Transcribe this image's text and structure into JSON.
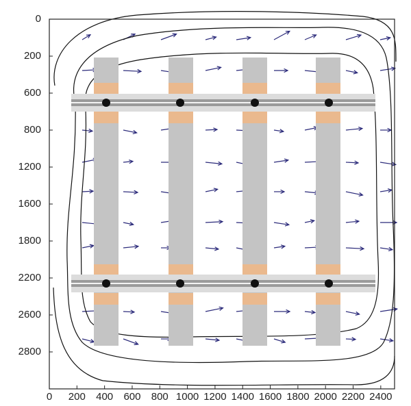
{
  "chart_data": {
    "type": "quiver",
    "xlim": [
      0,
      2500
    ],
    "xticks": [
      0,
      200,
      400,
      600,
      800,
      1000,
      1200,
      1400,
      1600,
      1800,
      2000,
      2200,
      2400
    ],
    "yticklabels": [
      "0",
      "200",
      "600",
      "800",
      "1200",
      "1600",
      "1800",
      "2200",
      "2600",
      "2800"
    ],
    "arrow_color": "#2b2a7a"
  }
}
